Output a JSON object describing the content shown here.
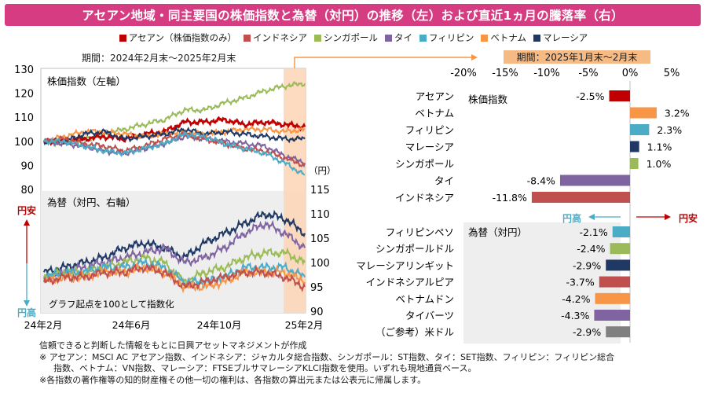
{
  "title": "アセアン地域・同主要国の株価指数と為替（対円）の推移（左）および直近1ヵ月の騰落率（右）",
  "legend": [
    {
      "label": "アセアン（株価指数のみ）",
      "color": "#c00000"
    },
    {
      "label": "インドネシア",
      "color": "#c0504d"
    },
    {
      "label": "シンガポール",
      "color": "#9bbb59"
    },
    {
      "label": "タイ",
      "color": "#8064a2"
    },
    {
      "label": "フィリピン",
      "color": "#4bacc6"
    },
    {
      "label": "ベトナム",
      "color": "#f79646"
    },
    {
      "label": "マレーシア",
      "color": "#1f3864"
    }
  ],
  "period_left": "期間：2024年2月末～2025年2月末",
  "period_right": "期間：2025年1月末～2月末",
  "footnotes": [
    "信頼できると判断した情報をもとに日興アセットマネジメントが作成",
    "※ アセアン：MSCI AC アセアン指数、インドネシア：ジャカルタ総合指数、シンガポール：ST指数、タイ：SET指数、フィリピン：フィリピン総合",
    "指数、ベトナム：VN指数、マレーシア：FTSEブルサマレーシアKLCI指数を使用。いずれも現地通貨ベース。",
    "※各指数の著作権等の知的財産権その他一切の権利は、各指数の算出元または公表元に帰属します。"
  ],
  "chart_data": [
    {
      "type": "line",
      "title": "株価指数（左軸）",
      "subtitle": "為替（対円、右軸）",
      "note": "グラフ起点を100として指数化",
      "left_axis": {
        "ticks": [
          "130",
          "120",
          "110",
          "100",
          "90",
          "80"
        ],
        "ylim": [
          80,
          130
        ]
      },
      "right_axis": {
        "unit": "（円）",
        "ticks": [
          "115",
          "110",
          "105",
          "100",
          "95",
          "90"
        ],
        "ylim": [
          90,
          115
        ]
      },
      "x_ticks": [
        "24年2月",
        "24年6月",
        "24年10月",
        "25年2月"
      ],
      "side_labels": {
        "weak": "円安",
        "strong": "円高"
      },
      "stock_series": [
        {
          "name": "シンガポール",
          "color": "#9bbb59",
          "values": [
            100,
            99,
            101,
            103,
            105,
            107,
            109,
            113,
            113,
            116,
            118,
            121,
            123,
            124
          ]
        },
        {
          "name": "アセアン",
          "color": "#c00000",
          "values": [
            100,
            100,
            101,
            102,
            101,
            103,
            104,
            108,
            108,
            109,
            107,
            108,
            107,
            106
          ]
        },
        {
          "name": "ベトナム",
          "color": "#f79646",
          "values": [
            100,
            102,
            104,
            104,
            103,
            102,
            103,
            104,
            103,
            104,
            105,
            105,
            104,
            105
          ]
        },
        {
          "name": "マレーシア",
          "color": "#1f3864",
          "values": [
            100,
            100,
            103,
            104,
            101,
            102,
            103,
            105,
            103,
            104,
            103,
            102,
            101,
            101
          ]
        },
        {
          "name": "タイ",
          "color": "#8064a2",
          "values": [
            100,
            99,
            98,
            96,
            95,
            97,
            99,
            102,
            101,
            100,
            99,
            98,
            94,
            91
          ]
        },
        {
          "name": "インドネシア",
          "color": "#c0504d",
          "values": [
            100,
            101,
            99,
            98,
            96,
            98,
            101,
            103,
            101,
            99,
            97,
            96,
            93,
            90
          ]
        },
        {
          "name": "フィリピン",
          "color": "#4bacc6",
          "values": [
            100,
            100,
            98,
            96,
            95,
            97,
            99,
            103,
            102,
            99,
            97,
            95,
            91,
            86
          ]
        }
      ],
      "fx_series": [
        {
          "name": "マレーシア",
          "color": "#1f3864",
          "values": [
            98,
            99,
            100,
            101,
            103,
            104,
            103,
            101,
            104,
            106,
            108,
            110,
            109,
            106
          ]
        },
        {
          "name": "タイ",
          "color": "#8064a2",
          "values": [
            97,
            98,
            99,
            100,
            101,
            102,
            103,
            100,
            101,
            103,
            106,
            108,
            106,
            103
          ]
        },
        {
          "name": "シンガポール",
          "color": "#9bbb59",
          "values": [
            97,
            98,
            98,
            99,
            100,
            101,
            100,
            96,
            98,
            99,
            101,
            102,
            102,
            100
          ]
        },
        {
          "name": "フィリピン",
          "color": "#4bacc6",
          "values": [
            97,
            98,
            98,
            99,
            99,
            100,
            99,
            96,
            96,
            97,
            99,
            99,
            99,
            97
          ]
        },
        {
          "name": "ベトナム",
          "color": "#f79646",
          "values": [
            96,
            97,
            97,
            98,
            98,
            99,
            98,
            95,
            95,
            96,
            98,
            98,
            98,
            96
          ]
        },
        {
          "name": "インドネシア",
          "color": "#c0504d",
          "values": [
            96,
            97,
            97,
            98,
            98,
            99,
            98,
            95,
            96,
            97,
            98,
            98,
            97,
            95
          ]
        }
      ]
    },
    {
      "type": "bar",
      "orientation": "horizontal",
      "x_ticks": [
        "-20%",
        "-15%",
        "-10%",
        "-5%",
        "0%",
        "5%"
      ],
      "xlim": [
        -20,
        5
      ],
      "section_stock": "株価指数",
      "section_fx": "為替（対円）",
      "fx_strong": "円高",
      "fx_weak": "円安",
      "stock_bars": [
        {
          "label": "アセアン",
          "value": -2.5,
          "value_label": "-2.5%",
          "color": "#c00000"
        },
        {
          "label": "ベトナム",
          "value": 3.2,
          "value_label": "3.2%",
          "color": "#f79646"
        },
        {
          "label": "フィリピン",
          "value": 2.3,
          "value_label": "2.3%",
          "color": "#4bacc6"
        },
        {
          "label": "マレーシア",
          "value": 1.1,
          "value_label": "1.1%",
          "color": "#1f3864"
        },
        {
          "label": "シンガポール",
          "value": 1.0,
          "value_label": "1.0%",
          "color": "#9bbb59"
        },
        {
          "label": "タイ",
          "value": -8.4,
          "value_label": "-8.4%",
          "color": "#8064a2"
        },
        {
          "label": "インドネシア",
          "value": -11.8,
          "value_label": "-11.8%",
          "color": "#c0504d"
        }
      ],
      "fx_bars": [
        {
          "label": "フィリピンペソ",
          "value": -2.1,
          "value_label": "-2.1%",
          "color": "#4bacc6"
        },
        {
          "label": "シンガポールドル",
          "value": -2.4,
          "value_label": "-2.4%",
          "color": "#9bbb59"
        },
        {
          "label": "マレーシアリンギット",
          "value": -2.9,
          "value_label": "-2.9%",
          "color": "#1f3864"
        },
        {
          "label": "インドネシアルピア",
          "value": -3.7,
          "value_label": "-3.7%",
          "color": "#c0504d"
        },
        {
          "label": "ベトナムドン",
          "value": -4.2,
          "value_label": "-4.2%",
          "color": "#f79646"
        },
        {
          "label": "タイバーツ",
          "value": -4.3,
          "value_label": "-4.3%",
          "color": "#8064a2"
        },
        {
          "label": "（ご参考）米ドル",
          "value": -2.9,
          "value_label": "-2.9%",
          "color": "#808080"
        }
      ]
    }
  ]
}
